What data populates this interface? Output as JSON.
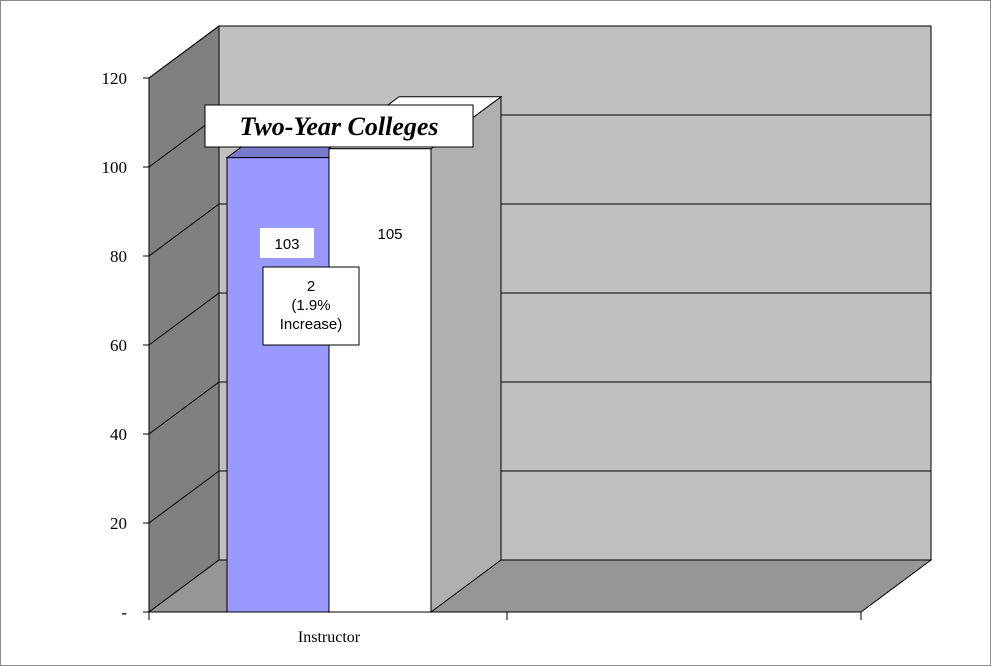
{
  "chart_data": {
    "type": "bar",
    "title": "Two-Year Colleges",
    "categories": [
      "Instructor"
    ],
    "series": [
      {
        "values": [
          103
        ],
        "color": "#9999ff"
      },
      {
        "values": [
          105
        ],
        "color": "#ffffff"
      }
    ],
    "data_labels": [
      "103",
      "105"
    ],
    "annotation": [
      "2",
      "(1.9%",
      "Increase)"
    ],
    "y_ticks": [
      "-",
      "20",
      "40",
      "60",
      "80",
      "100",
      "120"
    ],
    "ylim": [
      0,
      120
    ],
    "grid": true,
    "legend": "none",
    "style": "3d-column",
    "wall_color": "#c0c0c0",
    "side_wall_color": "#808080",
    "floor_color": "#969696"
  }
}
